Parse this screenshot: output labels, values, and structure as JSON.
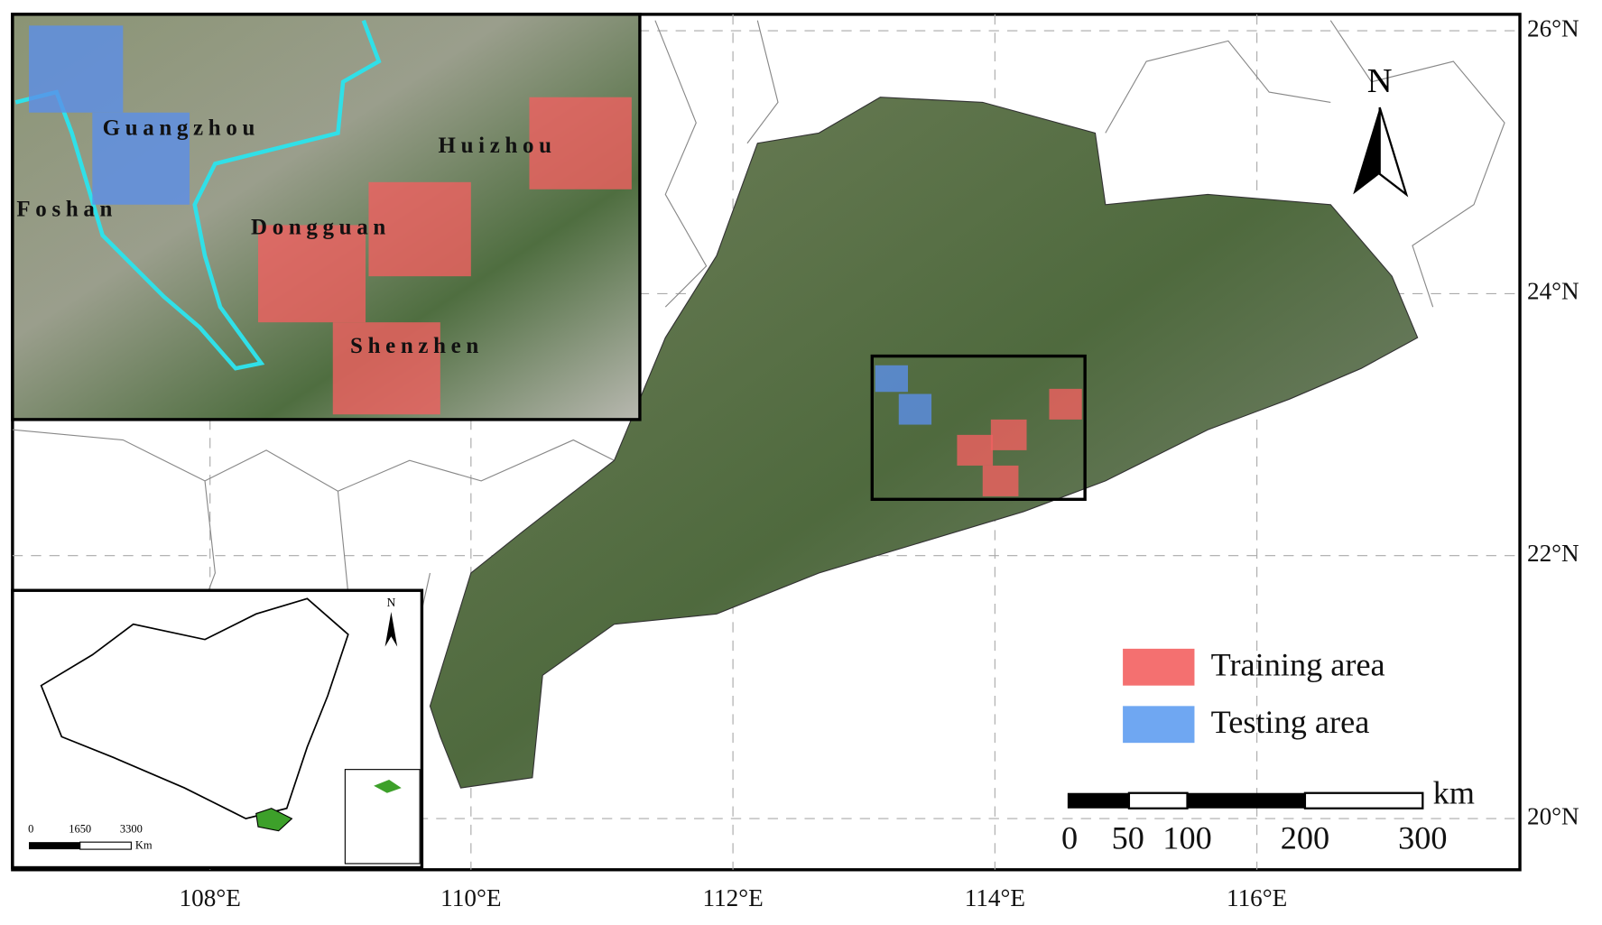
{
  "map": {
    "lat_labels": [
      "26°N",
      "24°N",
      "22°N",
      "20°N"
    ],
    "lon_labels": [
      "108°E",
      "110°E",
      "112°E",
      "114°E",
      "116°E"
    ],
    "inset_cities": [
      "Guangzhou",
      "Huizhou",
      "Foshan",
      "Dongguan",
      "Shenzhen"
    ],
    "legend": [
      "Training area",
      "Testing area"
    ],
    "north": "N",
    "scale_unit": "km",
    "scale_ticks": [
      0,
      50,
      100,
      200,
      300
    ],
    "china_inset": {
      "north": "N",
      "scale_ticks": [
        0,
        1650,
        3300
      ],
      "scale_unit": "Km"
    }
  }
}
